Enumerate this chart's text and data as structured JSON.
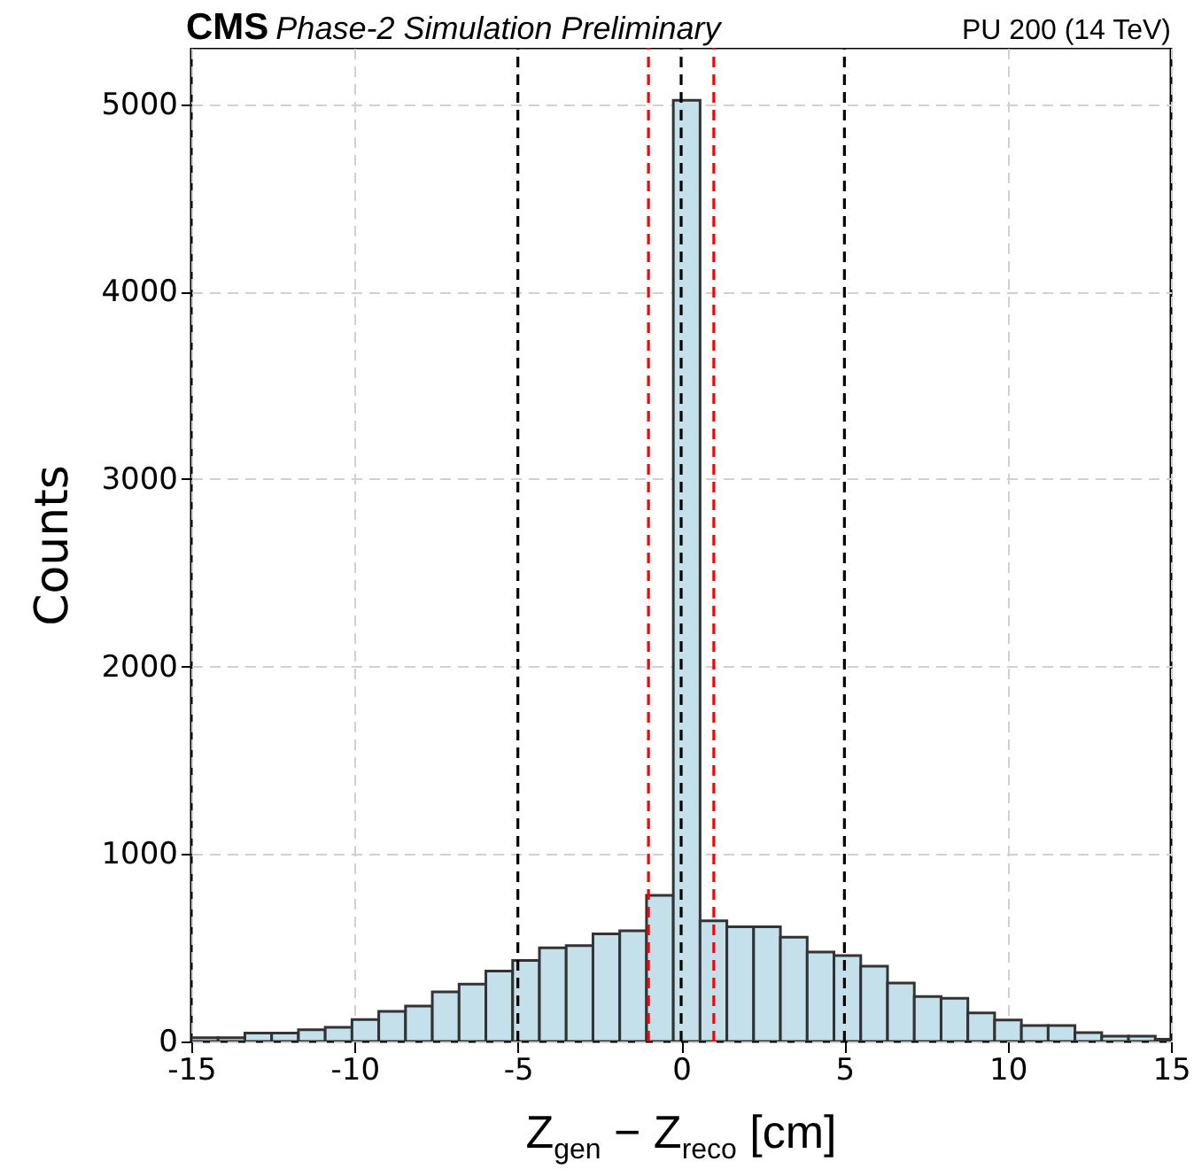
{
  "chart_data": {
    "type": "histogram",
    "title": "CMS",
    "subtitle": "Phase-2 Simulation Preliminary",
    "annotations": [
      "PU 200 (14 TeV)"
    ],
    "xlabel": "Z$_{gen}$ − Z$_{reco}$ [cm]",
    "ylabel": "Counts",
    "bins": [
      -15,
      -14.18,
      -13.36,
      -12.54,
      -11.72,
      -10.9,
      -10.08,
      -9.26,
      -8.44,
      -7.62,
      -6.8,
      -5.98,
      -5.16,
      -4.34,
      -3.52,
      -2.7,
      -1.88,
      -1.06,
      -0.24,
      0.58,
      1.4,
      2.22,
      3.04,
      3.86,
      4.68,
      5.5,
      6.32,
      7.14,
      7.96,
      8.78,
      9.6,
      10.42,
      11.24,
      12.06,
      12.88,
      13.7,
      14.52,
      15
    ],
    "values": [
      20,
      20,
      45,
      45,
      63,
      76,
      117,
      161,
      189,
      265,
      306,
      376,
      432,
      499,
      511,
      574,
      590,
      779,
      5020,
      644,
      612,
      612,
      556,
      477,
      458,
      401,
      312,
      240,
      230,
      152,
      114,
      85,
      85,
      47,
      28,
      28,
      12
    ],
    "color": "#c4e1eb",
    "xlim": [
      -15,
      15
    ],
    "xticks": [
      -15,
      -10,
      -5,
      0,
      5,
      10,
      15
    ],
    "ylim": [
      0,
      5300
    ],
    "yticks": [
      0,
      1000,
      2000,
      3000,
      4000,
      5000
    ],
    "grid": true,
    "ref_lines": [
      {
        "axis": "x",
        "value": -5,
        "color": "#000000",
        "line_style": "dashed"
      },
      {
        "axis": "x",
        "value": 0,
        "color": "#000000",
        "line_style": "dashed"
      },
      {
        "axis": "x",
        "value": 5,
        "color": "#000000",
        "line_style": "dashed"
      },
      {
        "axis": "x",
        "value": -1,
        "color": "#ff0000",
        "line_style": "dashed"
      },
      {
        "axis": "x",
        "value": 1,
        "color": "#ff0000",
        "line_style": "dashed"
      }
    ]
  }
}
